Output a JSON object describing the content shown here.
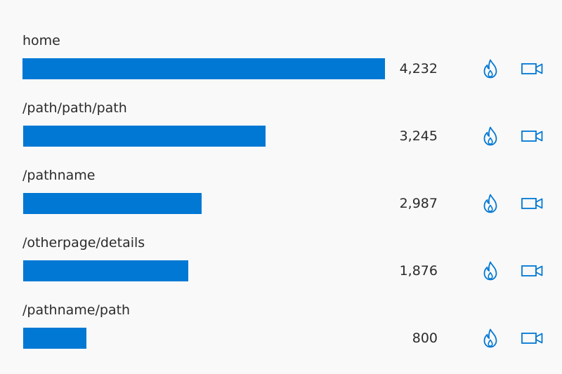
{
  "accent_color": "#0078d4",
  "rows": [
    {
      "label": "home",
      "value": "4,232",
      "fraction": 1.0,
      "heat_icon": "flame-icon",
      "video_icon": "video-camera-icon"
    },
    {
      "label": "/path/path/path",
      "value": "3,245",
      "fraction": 0.6678,
      "heat_icon": "flame-icon",
      "video_icon": "video-camera-icon"
    },
    {
      "label": "/pathname",
      "value": "2,987",
      "fraction": 0.4922,
      "heat_icon": "flame-icon",
      "video_icon": "video-camera-icon"
    },
    {
      "label": "/otherpage/details",
      "value": "1,876",
      "fraction": 0.4554,
      "heat_icon": "flame-icon",
      "video_icon": "video-camera-icon"
    },
    {
      "label": "/pathname/path",
      "value": "800",
      "fraction": 0.1744,
      "heat_icon": "flame-icon",
      "video_icon": "video-camera-icon"
    }
  ]
}
